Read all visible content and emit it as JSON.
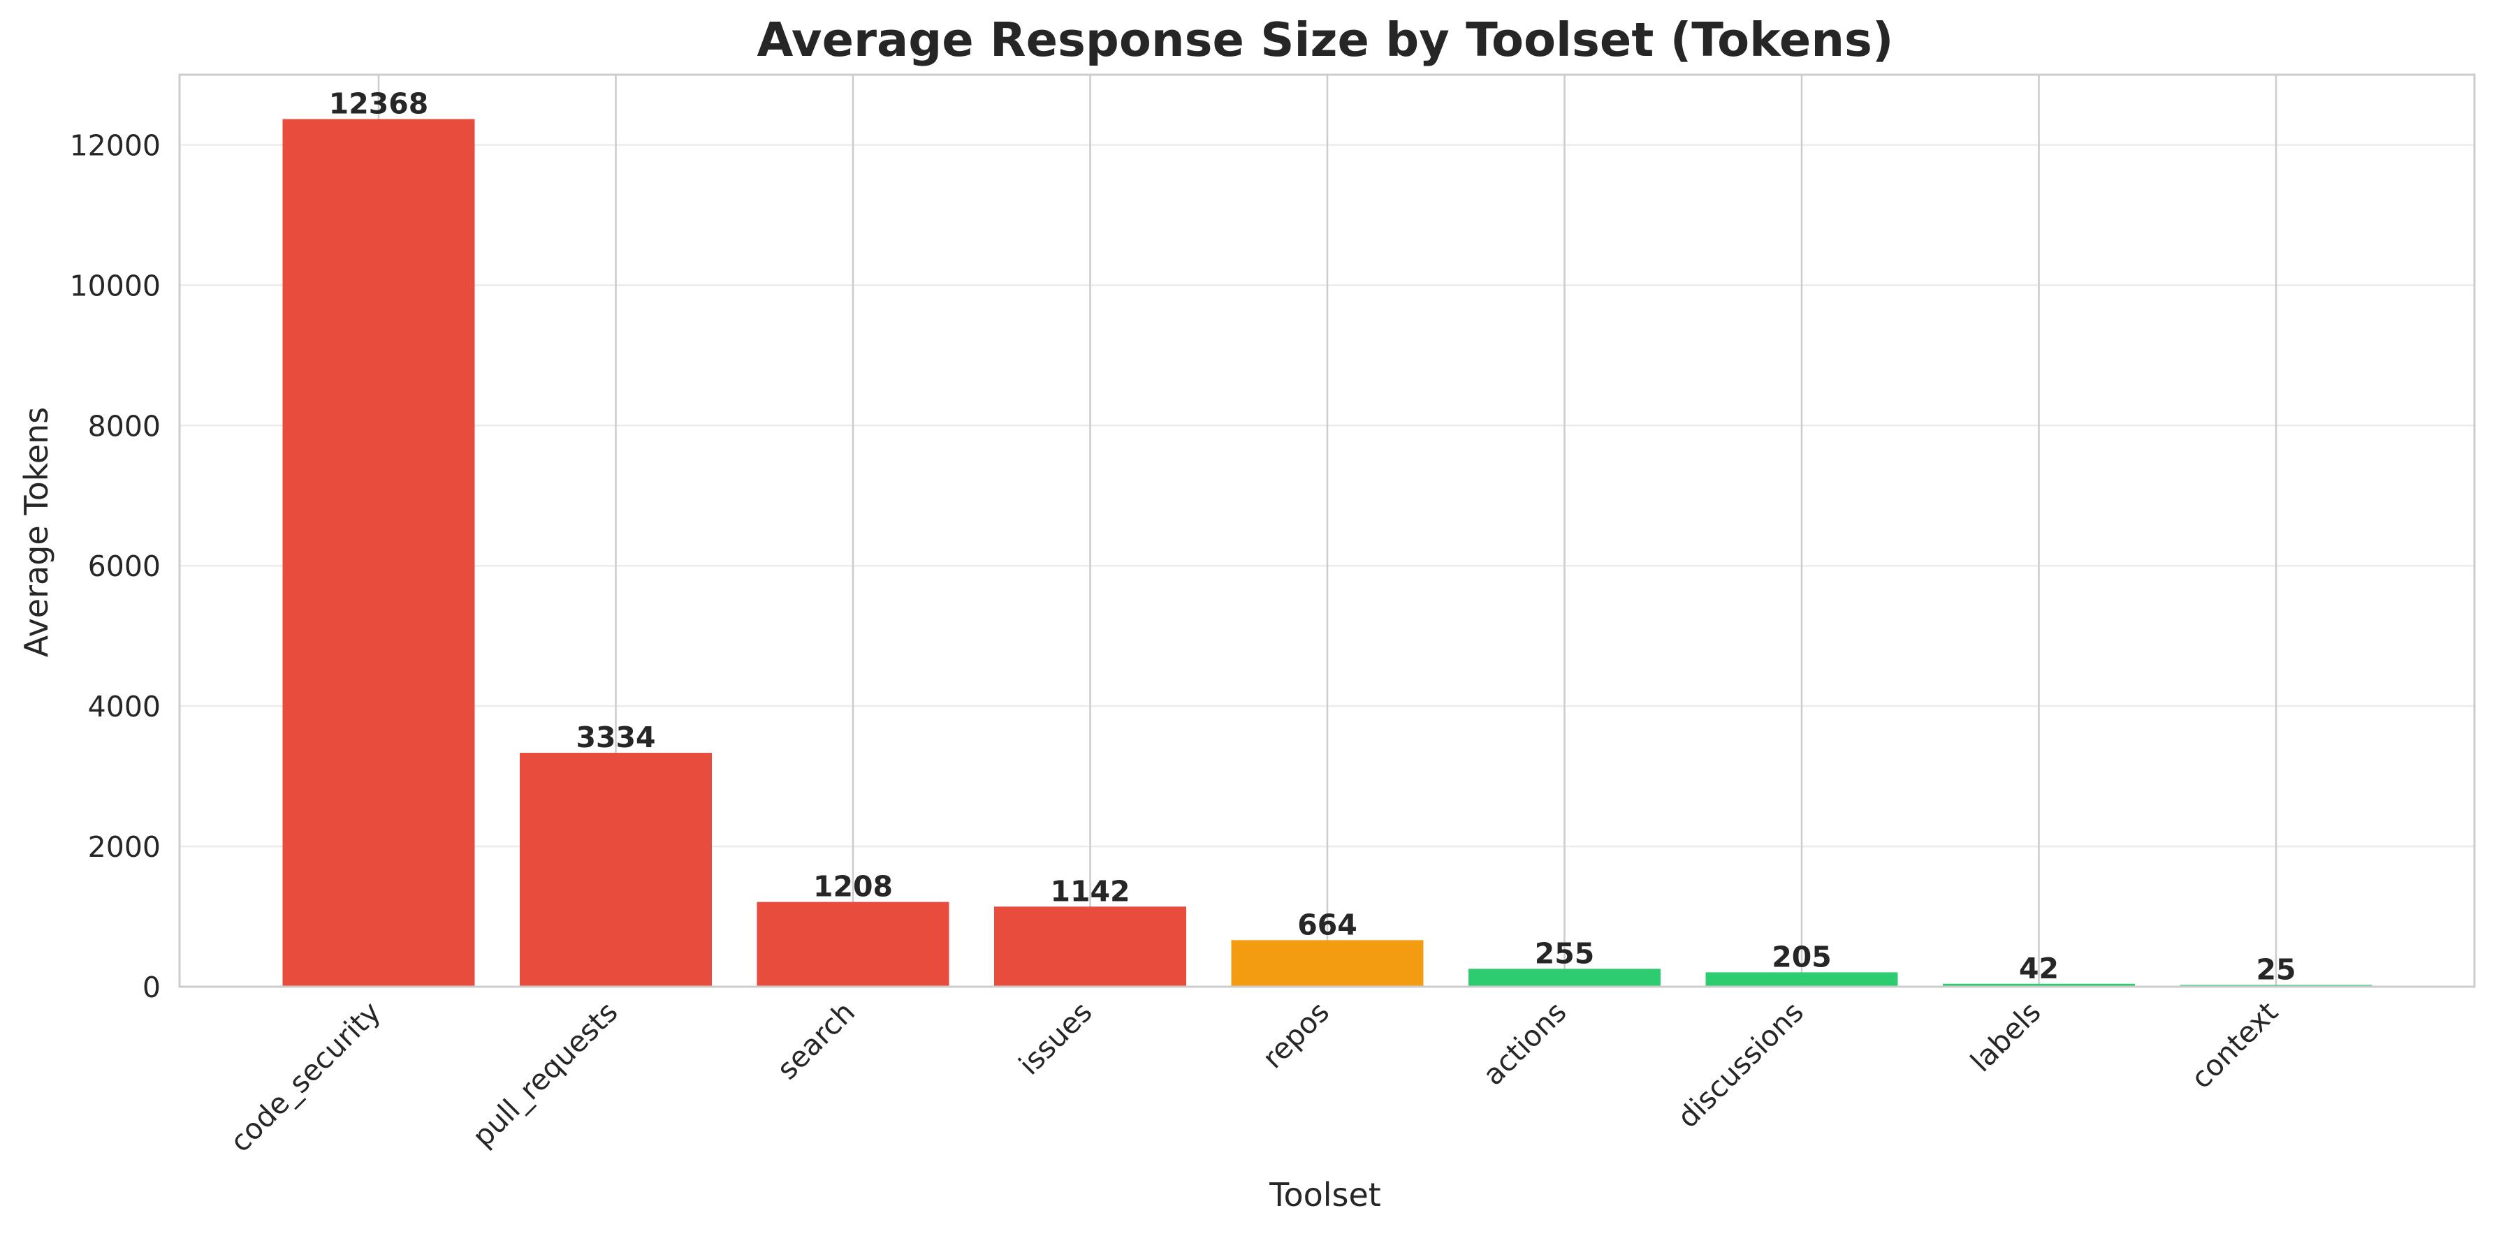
{
  "chart_data": {
    "type": "bar",
    "title": "Average Response Size by Toolset (Tokens)",
    "xlabel": "Toolset",
    "ylabel": "Average Tokens",
    "categories": [
      "code_security",
      "pull_requests",
      "search",
      "issues",
      "repos",
      "actions",
      "discussions",
      "labels",
      "context"
    ],
    "values": [
      12368,
      3334,
      1208,
      1142,
      664,
      255,
      205,
      42,
      25
    ],
    "value_labels": [
      "12368",
      "3334",
      "1208",
      "1142",
      "664",
      "255",
      "205",
      "42",
      "25"
    ],
    "bar_colors": [
      "#e74c3c",
      "#e74c3c",
      "#e74c3c",
      "#e74c3c",
      "#f39c12",
      "#2ecc71",
      "#2ecc71",
      "#2ecc71",
      "#2ecc71"
    ],
    "ylim": [
      0,
      13000
    ],
    "yticks": [
      0,
      2000,
      4000,
      6000,
      8000,
      10000,
      12000
    ],
    "ytick_labels": [
      "0",
      "2000",
      "4000",
      "6000",
      "8000",
      "10000",
      "12000"
    ],
    "grid": true,
    "legend": false
  }
}
